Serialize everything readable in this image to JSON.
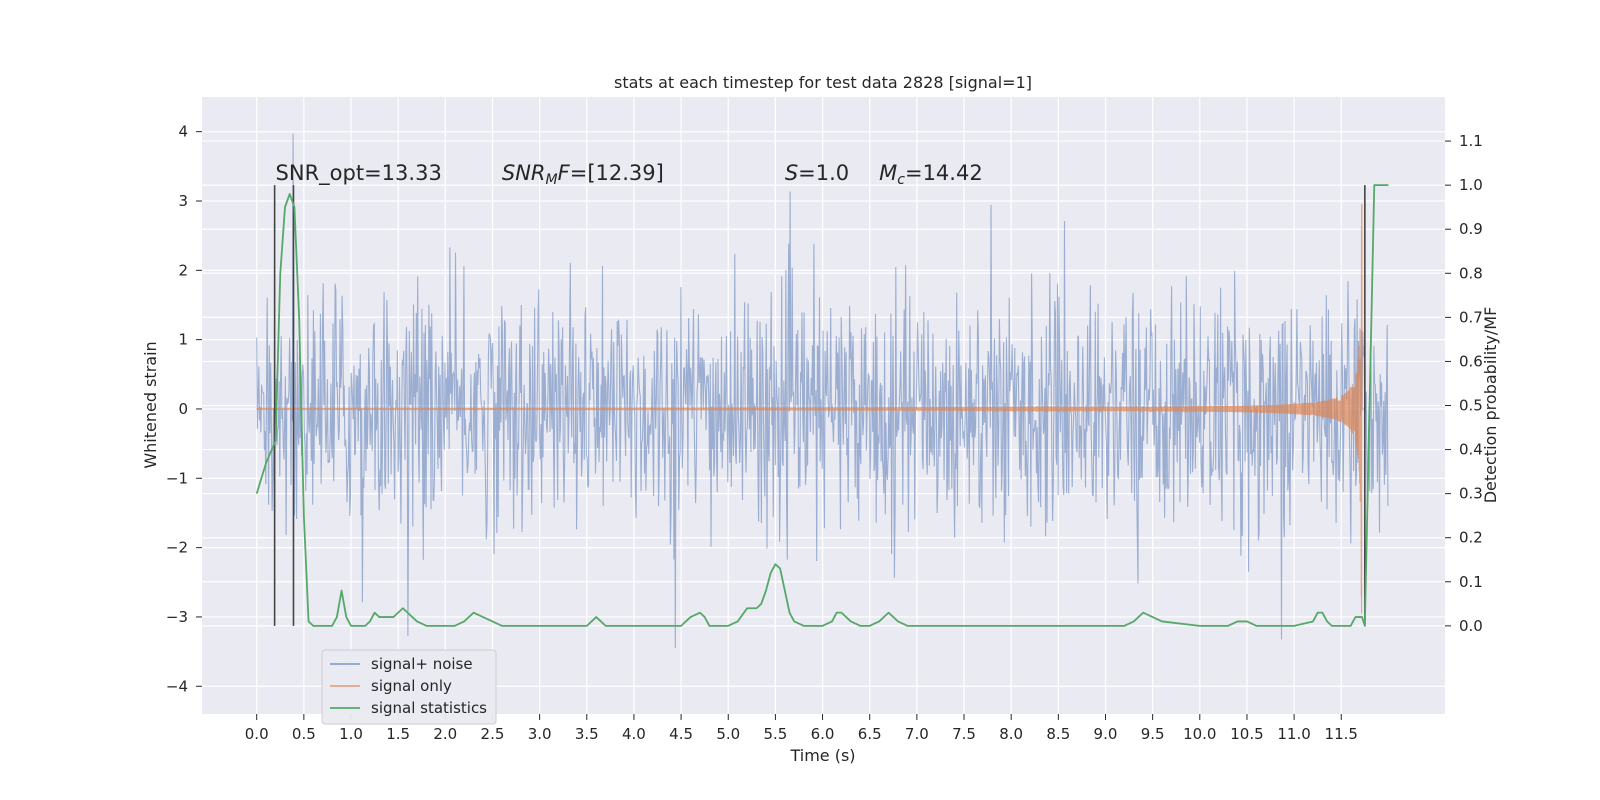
{
  "chart_data": {
    "type": "line",
    "title": "stats at each timestep for test data 2828 [signal=1]",
    "xlabel": "Time (s)",
    "ylabel": "Whitened strain",
    "ylabel_right": "Detection probability/MF",
    "xlim": [
      -0.58,
      12.6
    ],
    "ylim": [
      -4.4,
      4.5
    ],
    "ylim_right": [
      -0.2,
      1.2
    ],
    "x_ticks": [
      0.0,
      0.5,
      1.0,
      1.5,
      2.0,
      2.5,
      3.0,
      3.5,
      4.0,
      4.5,
      5.0,
      5.5,
      6.0,
      6.5,
      7.0,
      7.5,
      8.0,
      8.5,
      9.0,
      9.5,
      10.0,
      10.5,
      11.0,
      11.5
    ],
    "x_tick_labels": [
      "0.0",
      "0.5",
      "1.0",
      "1.5",
      "2.0",
      "2.5",
      "3.0",
      "3.5",
      "4.0",
      "4.5",
      "5.0",
      "5.5",
      "6.0",
      "6.5",
      "7.0",
      "7.5",
      "8.0",
      "8.5",
      "9.0",
      "9.5",
      "10.0",
      "10.5",
      "11.0",
      "11.5"
    ],
    "y_ticks": [
      -4,
      -3,
      -2,
      -1,
      0,
      1,
      2,
      3,
      4
    ],
    "y_tick_labels": [
      "−4",
      "−3",
      "−2",
      "−1",
      "0",
      "1",
      "2",
      "3",
      "4"
    ],
    "y_ticks_right": [
      0.0,
      0.1,
      0.2,
      0.3,
      0.4,
      0.5,
      0.6,
      0.7,
      0.8,
      0.9,
      1.0,
      1.1
    ],
    "y_tick_labels_right": [
      "0.0",
      "0.1",
      "0.2",
      "0.3",
      "0.4",
      "0.5",
      "0.6",
      "0.7",
      "0.8",
      "0.9",
      "1.0",
      "1.1"
    ],
    "grid": true,
    "legend_position": "lower-left",
    "series": [
      {
        "name": "signal+ noise",
        "color": "#4c72b0",
        "kind": "whitened strain noise trace",
        "x_range": [
          0.0,
          12.0
        ],
        "approx_core_band": [
          -1.3,
          1.3
        ],
        "approx_peak_range": [
          -4.05,
          4.1
        ]
      },
      {
        "name": "signal only",
        "color": "#dd8452",
        "kind": "chirp waveform",
        "x_range": [
          0.0,
          11.75
        ],
        "peak_time": 11.7,
        "peak_amplitude": 2.95
      },
      {
        "name": "signal statistics",
        "color": "#55a868",
        "axis": "right",
        "x": [
          0.0,
          0.1,
          0.2,
          0.25,
          0.3,
          0.35,
          0.4,
          0.45,
          0.5,
          0.55,
          0.6,
          0.7,
          0.8,
          0.85,
          0.9,
          0.95,
          1.0,
          1.1,
          1.15,
          1.2,
          1.25,
          1.3,
          1.35,
          1.4,
          1.45,
          1.5,
          1.55,
          1.6,
          1.65,
          1.7,
          1.8,
          2.0,
          2.1,
          2.2,
          2.3,
          2.4,
          2.5,
          2.6,
          2.8,
          3.0,
          3.3,
          3.5,
          3.55,
          3.6,
          3.65,
          3.7,
          3.75,
          3.8,
          4.0,
          4.5,
          4.6,
          4.7,
          4.75,
          4.8,
          4.85,
          4.9,
          5.0,
          5.1,
          5.2,
          5.25,
          5.3,
          5.35,
          5.4,
          5.45,
          5.5,
          5.55,
          5.6,
          5.65,
          5.7,
          5.8,
          6.0,
          6.1,
          6.15,
          6.2,
          6.3,
          6.4,
          6.5,
          6.6,
          6.7,
          6.8,
          6.9,
          7.0,
          7.5,
          7.6,
          8.0,
          9.0,
          9.2,
          9.3,
          9.4,
          9.5,
          9.6,
          10.0,
          10.3,
          10.4,
          10.5,
          10.6,
          11.0,
          11.2,
          11.25,
          11.3,
          11.35,
          11.4,
          11.5,
          11.6,
          11.65,
          11.7,
          11.72,
          11.75,
          11.8,
          11.85,
          11.9,
          12.0
        ],
        "y": [
          0.3,
          0.37,
          0.42,
          0.8,
          0.95,
          0.98,
          0.95,
          0.7,
          0.25,
          0.01,
          0.0,
          0.0,
          0.0,
          0.02,
          0.08,
          0.02,
          0.0,
          0.0,
          0.0,
          0.01,
          0.03,
          0.02,
          0.02,
          0.02,
          0.02,
          0.03,
          0.04,
          0.03,
          0.02,
          0.01,
          0.0,
          0.0,
          0.0,
          0.01,
          0.03,
          0.02,
          0.01,
          0.0,
          0.0,
          0.0,
          0.0,
          0.0,
          0.01,
          0.02,
          0.01,
          0.0,
          0.0,
          0.0,
          0.0,
          0.0,
          0.02,
          0.03,
          0.02,
          0.0,
          0.0,
          0.0,
          0.0,
          0.01,
          0.04,
          0.04,
          0.04,
          0.05,
          0.08,
          0.12,
          0.14,
          0.13,
          0.08,
          0.03,
          0.01,
          0.0,
          0.0,
          0.01,
          0.03,
          0.03,
          0.01,
          0.0,
          0.0,
          0.01,
          0.03,
          0.01,
          0.0,
          0.0,
          0.0,
          0.0,
          0.0,
          0.0,
          0.0,
          0.01,
          0.03,
          0.02,
          0.01,
          0.0,
          0.0,
          0.01,
          0.01,
          0.0,
          0.0,
          0.01,
          0.03,
          0.03,
          0.01,
          0.0,
          0.0,
          0.0,
          0.02,
          0.02,
          0.02,
          0.0,
          0.5,
          1.0,
          1.0,
          1.0
        ]
      }
    ],
    "vertical_lines": [
      {
        "x": 0.19,
        "color": "#444444"
      },
      {
        "x": 0.39,
        "color": "#444444"
      },
      {
        "x": 11.75,
        "color": "#444444"
      }
    ],
    "annotations": [
      {
        "text": "SNR_opt=13.33",
        "x": 0.2,
        "y": 3.3
      },
      {
        "text": "SNR_M F=[12.39]",
        "x": 2.6,
        "y": 3.3
      },
      {
        "text": "S=1.0",
        "x": 5.6,
        "y": 3.3
      },
      {
        "text": "M_c=14.42",
        "x": 6.6,
        "y": 3.3
      }
    ],
    "legend": [
      {
        "label": "signal+ noise",
        "color": "#4c72b0"
      },
      {
        "label": "signal only",
        "color": "#dd8452"
      },
      {
        "label": "signal statistics",
        "color": "#55a868"
      }
    ]
  }
}
